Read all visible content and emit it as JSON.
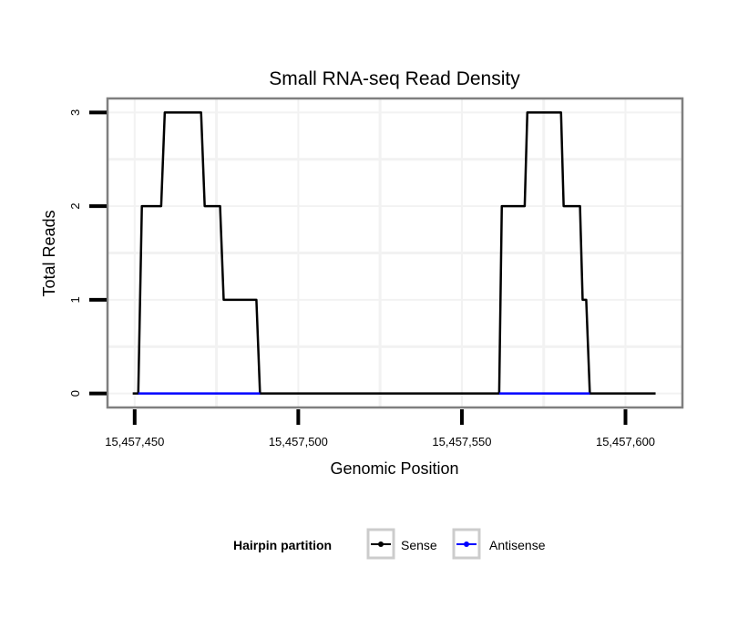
{
  "chart_data": {
    "type": "line",
    "title": "Small RNA-seq Read Density",
    "xlabel": "Genomic Position",
    "ylabel": "Total Reads",
    "xlim": [
      15457441.7,
      15457617.4
    ],
    "ylim": [
      -0.15,
      3.15
    ],
    "x_ticks": [
      15457450,
      15457500,
      15457550,
      15457600
    ],
    "x_tick_labels": [
      "15,457,450",
      "15,457,500",
      "15,457,550",
      "15,457,600"
    ],
    "y_ticks": [
      0,
      1,
      2,
      3
    ],
    "y_tick_labels": [
      "0",
      "1",
      "2",
      "3"
    ],
    "grid": true,
    "legend": {
      "title": "Hairpin partition",
      "placement": "bottom",
      "entries": [
        "Sense",
        "Antisense"
      ]
    },
    "series": [
      {
        "name": "Sense",
        "color": "#000000",
        "x": [
          15457449.4,
          15457451.1,
          15457452.2,
          15457458.1,
          15457459.2,
          15457470.3,
          15457471.4,
          15457476.1,
          15457477.2,
          15457487.2,
          15457488.3,
          15457561.4,
          15457562.2,
          15457569.2,
          15457570.0,
          15457580.3,
          15457581.1,
          15457586.1,
          15457586.9,
          15457588.0,
          15457589.1,
          15457609.2
        ],
        "y": [
          0,
          0,
          2,
          2,
          3,
          3,
          2,
          2,
          1,
          1,
          0,
          0,
          2,
          2,
          3,
          3,
          2,
          2,
          1,
          1,
          0,
          0
        ]
      },
      {
        "name": "Antisense",
        "color": "#0000ff",
        "segments": [
          {
            "x": [
              15457451.1,
              15457488.3
            ],
            "y": [
              0,
              0
            ]
          },
          {
            "x": [
              15457561.4,
              15457589.1
            ],
            "y": [
              0,
              0
            ]
          }
        ]
      }
    ]
  }
}
